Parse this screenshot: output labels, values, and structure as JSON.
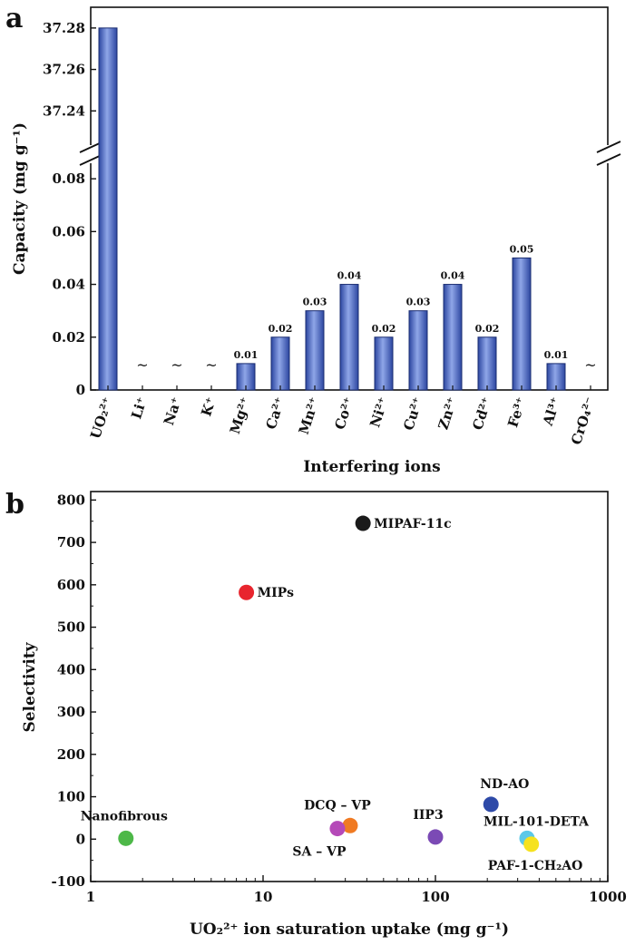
{
  "chart_data": [
    {
      "type": "bar",
      "panel_label": "a",
      "xlabel": "Interfering ions",
      "ylabel": "Capacity (mg g⁻¹)",
      "categories": [
        "UO₂²⁺",
        "Li⁺",
        "Na⁺",
        "K⁺",
        "Mg²⁺",
        "Ca²⁺",
        "Mn²⁺",
        "Co²⁺",
        "Ni²⁺",
        "Cu²⁺",
        "Zn²⁺",
        "Cd²⁺",
        "Fe³⁺",
        "Al³⁺",
        "CrO₄²⁻"
      ],
      "values": [
        37.28,
        null,
        null,
        null,
        0.01,
        0.02,
        0.03,
        0.04,
        0.02,
        0.03,
        0.04,
        0.02,
        0.05,
        0.01,
        null
      ],
      "data_labels": [
        "",
        "~",
        "~",
        "~",
        "0.01",
        "0.02",
        "0.03",
        "0.04",
        "0.02",
        "0.03",
        "0.04",
        "0.02",
        "0.05",
        "0.01",
        "~"
      ],
      "y_axis_break": true,
      "ylim_lower": [
        0,
        0.09
      ],
      "ylim_upper": [
        37.22,
        37.29
      ],
      "yticks_lower": [
        "0",
        "0.02",
        "0.04",
        "0.06",
        "0.08"
      ],
      "yticks_upper": [
        "37.24",
        "37.26",
        "37.28"
      ],
      "bar_color": "#3f5fb8"
    },
    {
      "type": "scatter",
      "panel_label": "b",
      "xlabel": "UO₂²⁺ ion saturation uptake (mg g⁻¹)",
      "ylabel": "Selectivity",
      "x_scale": "log",
      "xlim": [
        1,
        1000
      ],
      "ylim": [
        -100,
        820
      ],
      "xticks": [
        "1",
        "10",
        "100",
        "1000"
      ],
      "yticks": [
        "-100",
        "0",
        "100",
        "200",
        "300",
        "400",
        "500",
        "600",
        "700",
        "800"
      ],
      "points": [
        {
          "label": "MIPAF-11c",
          "x": 38,
          "y": 745,
          "color": "#1a1a1a"
        },
        {
          "label": "MIPs",
          "x": 8,
          "y": 582,
          "color": "#e8252e"
        },
        {
          "label": "Nanofibrous",
          "x": 1.6,
          "y": 2,
          "color": "#4db848"
        },
        {
          "label": "DCQ – VP",
          "x": 32,
          "y": 32,
          "color": "#f07a22"
        },
        {
          "label": "SA – VP",
          "x": 27,
          "y": 25,
          "color": "#b549b8"
        },
        {
          "label": "IIP3",
          "x": 100,
          "y": 5,
          "color": "#7b4ab5"
        },
        {
          "label": "ND-AO",
          "x": 210,
          "y": 82,
          "color": "#2e4aa8"
        },
        {
          "label": "MIL-101-DETA",
          "x": 340,
          "y": 2,
          "color": "#5bc8e8"
        },
        {
          "label": "PAF-1-CH₂AO",
          "x": 360,
          "y": -12,
          "color": "#f6e21e"
        }
      ]
    }
  ]
}
